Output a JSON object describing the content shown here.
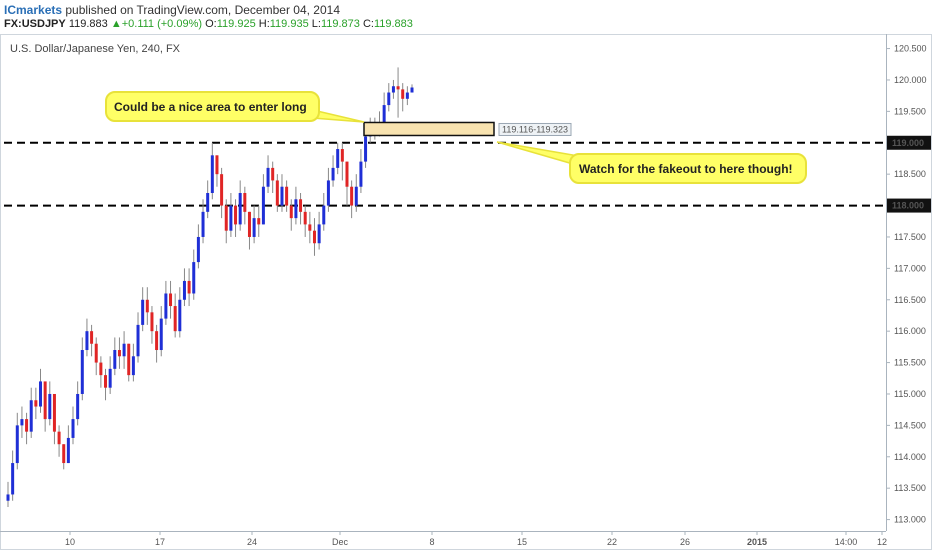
{
  "header": {
    "author": "ICmarkets",
    "published": "published on TradingView.com, December 04, 2014",
    "symbol": "FX:USDJPY",
    "last": "119.883",
    "change": "+0.111 (+0.09%)",
    "open_label": "O:",
    "open": "119.925",
    "high_label": "H:",
    "high": "119.935",
    "low_label": "L:",
    "low": "119.873",
    "close_label": "C:",
    "close": "119.883"
  },
  "chart_data": {
    "type": "candlestick",
    "title": "U.S. Dollar/Japanese Yen, 240, FX",
    "ylim": [
      112.85,
      120.7
    ],
    "y_ticks": [
      "113.000",
      "113.500",
      "114.000",
      "114.500",
      "115.000",
      "115.500",
      "116.000",
      "116.500",
      "117.000",
      "117.500",
      "118.000",
      "118.500",
      "119.000",
      "119.500",
      "120.000",
      "120.500"
    ],
    "x_ticks": [
      "10",
      "17",
      "24",
      "Dec",
      "8",
      "15",
      "22",
      "26",
      "2015",
      "14:00",
      "12"
    ],
    "grid": false,
    "up_color": "#1f2fd6",
    "down_color": "#e02525",
    "wick_color": "#888888",
    "levels": [
      {
        "label": "119.000",
        "value": 119.0
      },
      {
        "label": "118.000",
        "value": 118.0
      }
    ],
    "zone": {
      "label": "119.116-119.323",
      "low": 119.116,
      "high": 119.323
    },
    "annotations": [
      {
        "text": "Could be a nice area to enter long"
      },
      {
        "text": "Watch for the fakeout to here though!"
      }
    ],
    "series_close": [
      113.4,
      113.9,
      114.5,
      114.6,
      114.4,
      114.9,
      114.8,
      115.2,
      114.6,
      115.0,
      114.4,
      114.2,
      113.9,
      114.3,
      114.6,
      115.0,
      115.7,
      116.0,
      115.8,
      115.5,
      115.3,
      115.1,
      115.4,
      115.7,
      115.6,
      115.8,
      115.3,
      115.6,
      116.1,
      116.5,
      116.3,
      116.0,
      115.7,
      116.2,
      116.6,
      116.4,
      116.0,
      116.5,
      116.8,
      116.6,
      117.1,
      117.5,
      117.9,
      118.2,
      118.8,
      118.5,
      118.0,
      117.6,
      118.0,
      117.7,
      118.2,
      117.9,
      117.5,
      117.8,
      117.7,
      118.3,
      118.6,
      118.4,
      118.0,
      118.3,
      118.0,
      117.8,
      118.1,
      117.9,
      117.7,
      117.6,
      117.4,
      117.7,
      118.0,
      118.4,
      118.6,
      118.9,
      118.7,
      118.3,
      118.0,
      118.3,
      118.7,
      119.1,
      119.2,
      119.25,
      119.3,
      119.6,
      119.8,
      119.9,
      119.85,
      119.7,
      119.8,
      119.88
    ],
    "series_high": [
      113.6,
      114.1,
      114.7,
      114.8,
      114.7,
      115.1,
      115.1,
      115.4,
      115.1,
      115.2,
      114.9,
      114.5,
      114.2,
      114.5,
      114.8,
      115.2,
      115.9,
      116.2,
      116.1,
      115.9,
      115.6,
      115.4,
      115.6,
      115.9,
      115.9,
      116.0,
      115.8,
      115.8,
      116.3,
      116.7,
      116.7,
      116.4,
      116.1,
      116.4,
      116.8,
      116.8,
      116.6,
      116.7,
      117.0,
      117.0,
      117.3,
      117.7,
      118.1,
      118.4,
      119.0,
      118.8,
      118.6,
      118.1,
      118.2,
      118.1,
      118.4,
      118.3,
      117.9,
      118.0,
      118.0,
      118.5,
      118.8,
      118.7,
      118.5,
      118.5,
      118.4,
      118.1,
      118.3,
      118.2,
      118.0,
      117.9,
      117.8,
      117.9,
      118.2,
      118.6,
      118.8,
      119.0,
      119.0,
      118.7,
      118.4,
      118.5,
      118.9,
      119.3,
      119.4,
      119.4,
      119.5,
      119.8,
      119.95,
      120.0,
      120.2,
      119.95,
      119.9,
      119.93
    ],
    "series_low": [
      113.2,
      113.3,
      113.8,
      114.3,
      114.2,
      114.3,
      114.6,
      114.7,
      114.4,
      114.5,
      114.2,
      114.0,
      113.8,
      113.9,
      114.2,
      114.5,
      114.9,
      115.6,
      115.6,
      115.3,
      115.1,
      114.9,
      115.0,
      115.3,
      115.4,
      115.4,
      115.2,
      115.2,
      115.5,
      116.0,
      116.1,
      115.8,
      115.5,
      115.6,
      116.1,
      116.2,
      115.9,
      115.9,
      116.4,
      116.4,
      116.5,
      117.0,
      117.4,
      117.8,
      118.1,
      118.3,
      117.8,
      117.4,
      117.5,
      117.5,
      117.6,
      117.7,
      117.3,
      117.4,
      117.5,
      117.7,
      118.2,
      118.2,
      117.9,
      117.9,
      117.9,
      117.6,
      117.7,
      117.7,
      117.5,
      117.4,
      117.2,
      117.3,
      117.6,
      117.9,
      118.3,
      118.5,
      118.4,
      118.0,
      117.8,
      117.9,
      118.2,
      118.6,
      119.0,
      119.05,
      119.1,
      119.2,
      119.5,
      119.7,
      119.4,
      119.5,
      119.6,
      119.8
    ]
  }
}
